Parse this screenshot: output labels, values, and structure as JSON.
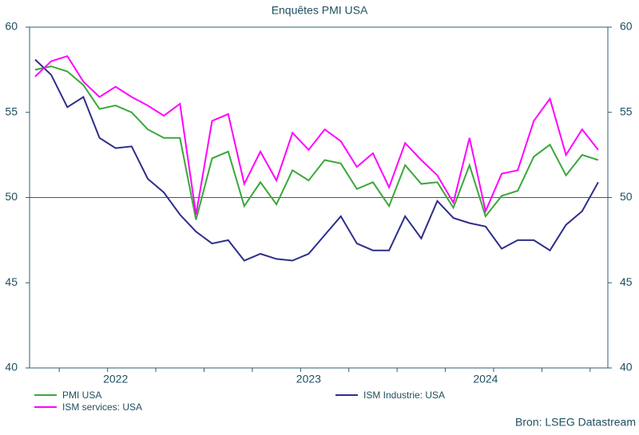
{
  "chart_data": {
    "type": "line",
    "title": "Enquêtes PMI USA",
    "categories": [
      null,
      null,
      null,
      null,
      null,
      "2022",
      null,
      null,
      null,
      null,
      null,
      null,
      null,
      null,
      null,
      null,
      null,
      "2023",
      null,
      null,
      null,
      null,
      null,
      null,
      null,
      null,
      null,
      null,
      "2024",
      null,
      null,
      null,
      null,
      null,
      null,
      null
    ],
    "series": [
      {
        "name": "PMI USA",
        "color": "#3aa83a",
        "values": [
          57.5,
          57.7,
          57.4,
          56.6,
          55.2,
          55.4,
          55.0,
          54.0,
          53.5,
          53.5,
          48.7,
          52.3,
          52.7,
          49.5,
          50.9,
          49.6,
          51.6,
          51.0,
          52.2,
          52.0,
          50.5,
          50.9,
          49.5,
          51.9,
          50.8,
          50.9,
          49.4,
          51.9,
          48.9,
          50.1,
          50.4,
          52.4,
          53.1,
          51.3,
          52.5,
          52.2
        ]
      },
      {
        "name": "ISM Industrie: USA",
        "color": "#2e2e8a",
        "values": [
          58.1,
          57.2,
          55.3,
          55.9,
          53.5,
          52.9,
          53.0,
          51.1,
          50.3,
          49.0,
          48.0,
          47.3,
          47.5,
          46.3,
          46.7,
          46.4,
          46.3,
          46.7,
          47.8,
          48.9,
          47.3,
          46.9,
          46.9,
          48.9,
          47.6,
          49.8,
          48.8,
          48.5,
          48.3,
          47.0,
          47.5,
          47.5,
          46.9,
          48.4,
          49.2,
          50.9
        ]
      },
      {
        "name": "ISM services: USA",
        "color": "#ff00ff",
        "values": [
          57.1,
          58.0,
          58.3,
          56.8,
          55.9,
          56.5,
          55.9,
          55.4,
          54.8,
          55.5,
          49.0,
          54.5,
          54.9,
          50.8,
          52.7,
          51.0,
          53.8,
          52.8,
          54.0,
          53.3,
          51.8,
          52.6,
          50.6,
          53.2,
          52.2,
          51.3,
          49.7,
          53.5,
          49.2,
          51.4,
          51.6,
          54.5,
          55.8,
          52.5,
          54.0,
          52.8
        ]
      }
    ],
    "ylim": [
      40,
      60
    ],
    "yticks": [
      40,
      45,
      50,
      55,
      60
    ],
    "reference_line": 50,
    "source": "Bron: LSEG Datastream"
  }
}
